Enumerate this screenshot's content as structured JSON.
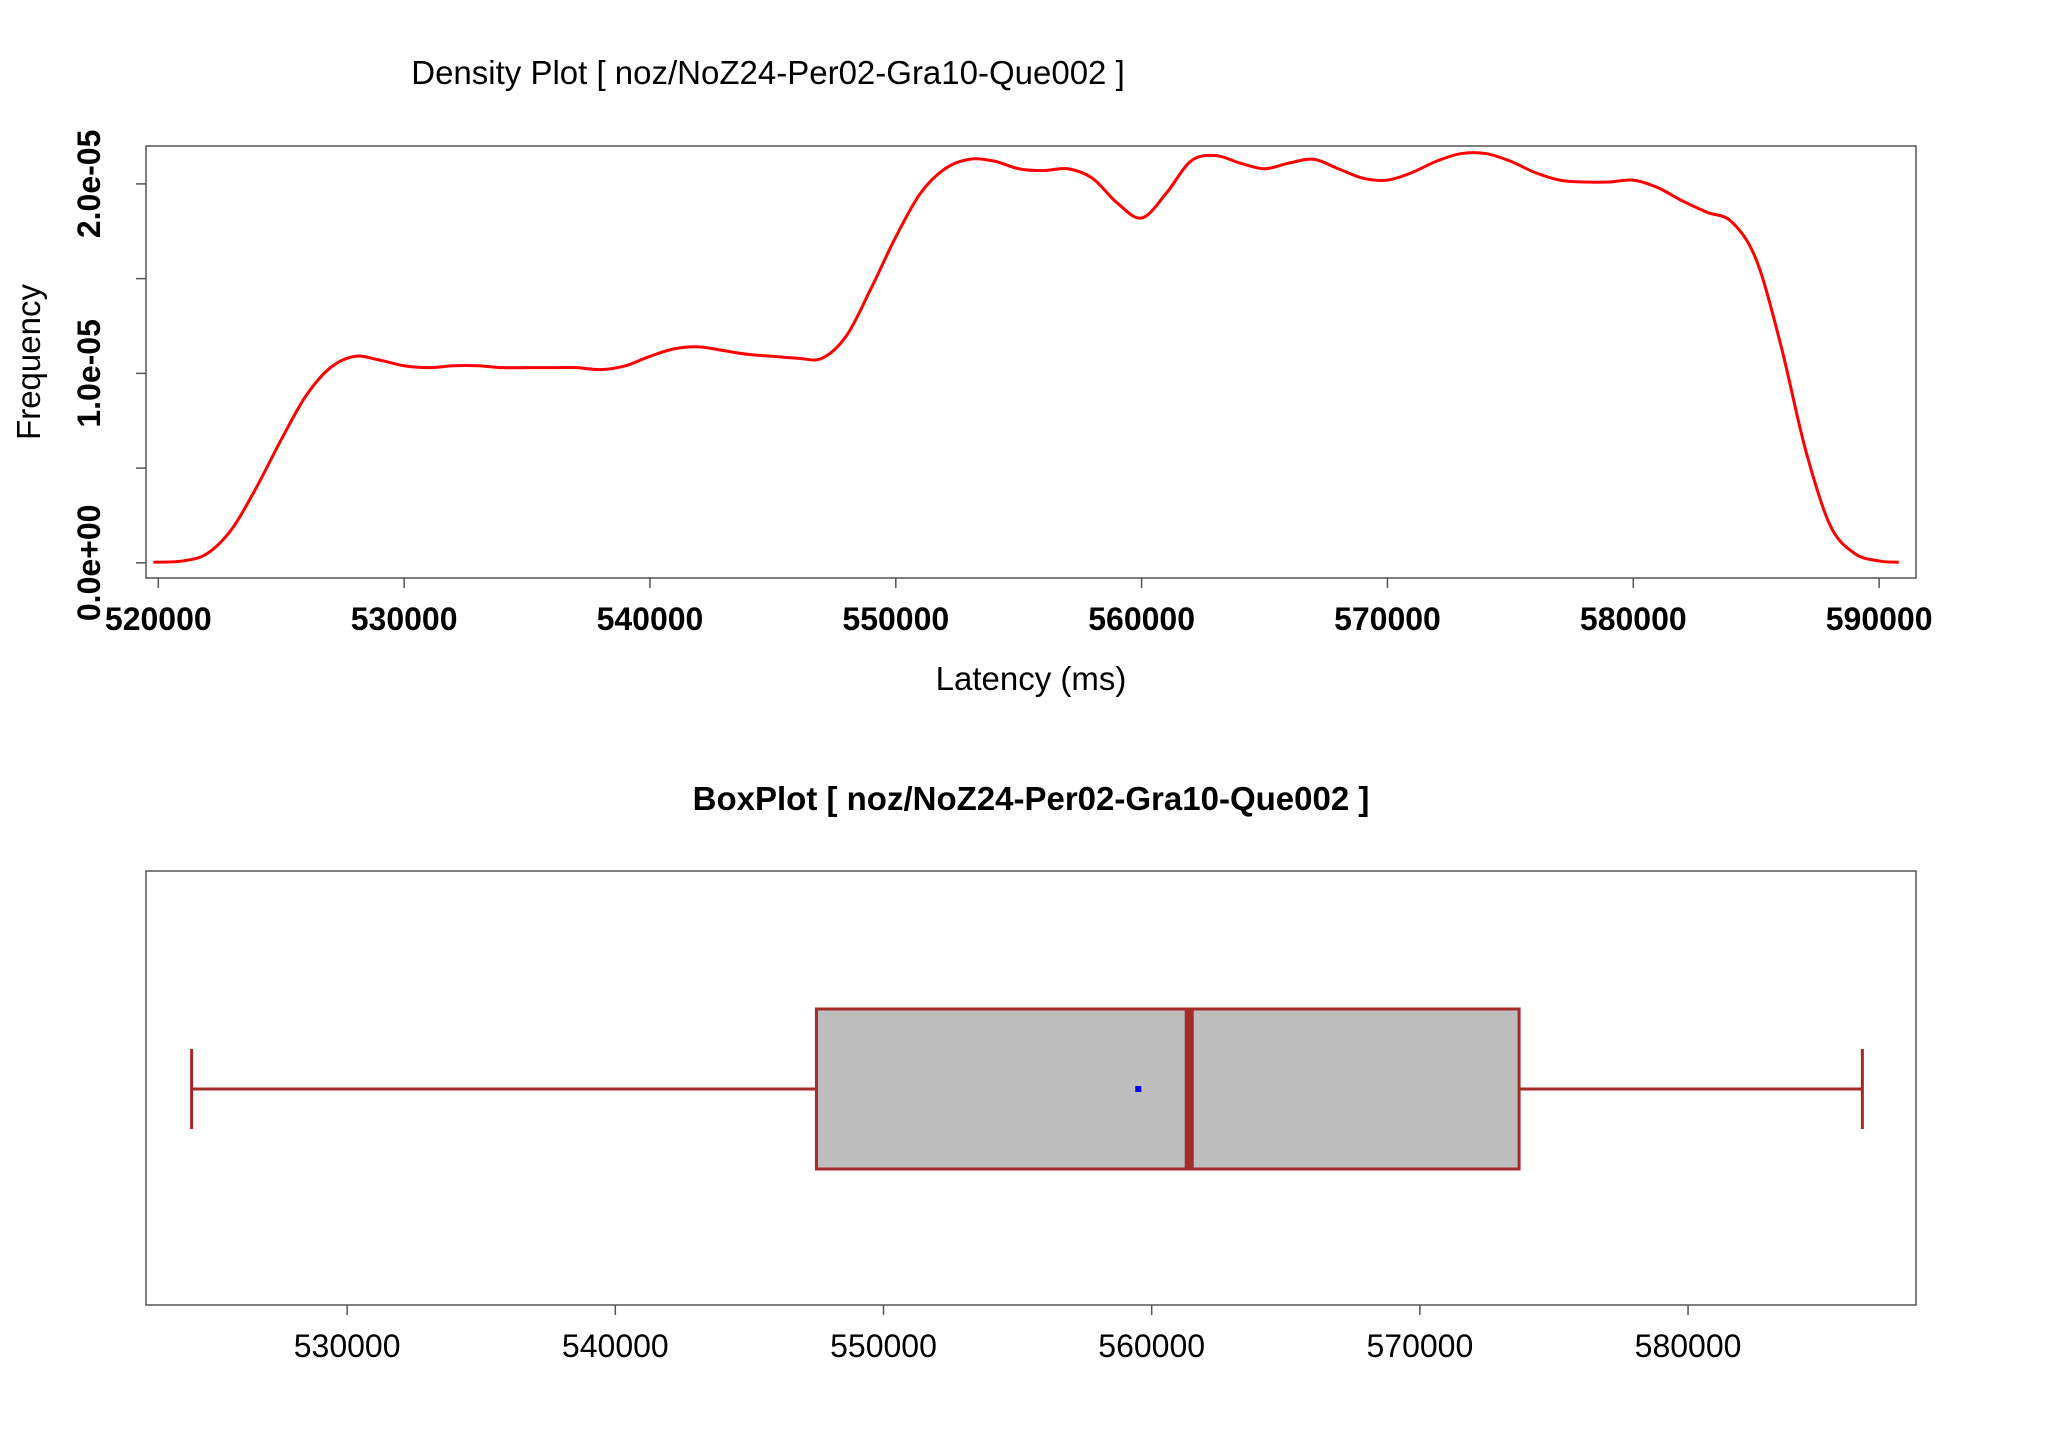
{
  "chart_data": [
    {
      "type": "line",
      "title": "Density Plot [ noz/NoZ24-Per02-Gra10-Que002 ]",
      "xlabel": "Latency (ms)",
      "ylabel": "Frequency",
      "xlim": [
        519500,
        591500
      ],
      "ylim": [
        -8e-07,
        2.2e-05
      ],
      "x_ticks": [
        520000,
        530000,
        540000,
        550000,
        560000,
        570000,
        580000,
        590000
      ],
      "x_tick_labels": [
        "520000",
        "530000",
        "540000",
        "550000",
        "560000",
        "570000",
        "580000",
        "590000"
      ],
      "y_ticks": [
        0,
        5e-06,
        1e-05,
        1.5e-05,
        2e-05
      ],
      "y_tick_labels": [
        "0.0e+00",
        "",
        "1.0e-05",
        "",
        "2.0e-05"
      ],
      "grid": false,
      "series": [
        {
          "color": "#ff0000",
          "x": [
            519800,
            521000,
            522000,
            523000,
            524000,
            525000,
            526000,
            527000,
            528000,
            529000,
            530000,
            531000,
            532000,
            533000,
            534000,
            535000,
            536000,
            537000,
            538000,
            539000,
            540000,
            541000,
            542000,
            543000,
            544000,
            545000,
            546000,
            547000,
            548000,
            549000,
            550000,
            551000,
            552000,
            553000,
            554000,
            555000,
            556000,
            557000,
            558000,
            559000,
            560000,
            561000,
            562000,
            563000,
            564000,
            565000,
            566000,
            567000,
            568000,
            569000,
            570000,
            571000,
            572000,
            573000,
            574000,
            575000,
            576000,
            577000,
            578000,
            579000,
            580000,
            581000,
            582000,
            583000,
            584000,
            585000,
            586000,
            587000,
            588000,
            589000,
            590000,
            590800
          ],
          "y": [
            3e-08,
            1e-07,
            5e-07,
            1.8e-06,
            4e-06,
            6.5e-06,
            8.8e-06,
            1.03e-05,
            1.09e-05,
            1.07e-05,
            1.04e-05,
            1.03e-05,
            1.04e-05,
            1.04e-05,
            1.03e-05,
            1.03e-05,
            1.03e-05,
            1.03e-05,
            1.02e-05,
            1.04e-05,
            1.09e-05,
            1.13e-05,
            1.14e-05,
            1.12e-05,
            1.1e-05,
            1.09e-05,
            1.08e-05,
            1.08e-05,
            1.2e-05,
            1.45e-05,
            1.72e-05,
            1.95e-05,
            2.08e-05,
            2.13e-05,
            2.12e-05,
            2.08e-05,
            2.07e-05,
            2.08e-05,
            2.03e-05,
            1.9e-05,
            1.82e-05,
            1.95e-05,
            2.12e-05,
            2.15e-05,
            2.11e-05,
            2.08e-05,
            2.11e-05,
            2.13e-05,
            2.08e-05,
            2.03e-05,
            2.02e-05,
            2.06e-05,
            2.12e-05,
            2.16e-05,
            2.16e-05,
            2.12e-05,
            2.06e-05,
            2.02e-05,
            2.01e-05,
            2.01e-05,
            2.02e-05,
            1.98e-05,
            1.91e-05,
            1.85e-05,
            1.8e-05,
            1.6e-05,
            1.15e-05,
            6e-06,
            2e-06,
            5e-07,
            1e-07,
            3e-08
          ]
        }
      ]
    },
    {
      "type": "box",
      "title": "BoxPlot [ noz/NoZ24-Per02-Gra10-Que002 ]",
      "xlim": [
        522500,
        588500
      ],
      "x_ticks": [
        530000,
        540000,
        550000,
        560000,
        570000,
        580000
      ],
      "x_tick_labels": [
        "530000",
        "540000",
        "550000",
        "560000",
        "570000",
        "580000"
      ],
      "grid": false,
      "whisker_low": 524200,
      "q1": 547500,
      "median": 561400,
      "q3": 573700,
      "whisker_high": 586500,
      "mean": 559500,
      "box_fill": "#bebebe",
      "box_stroke": "#a52a2a",
      "mean_color": "#0000ff"
    }
  ]
}
